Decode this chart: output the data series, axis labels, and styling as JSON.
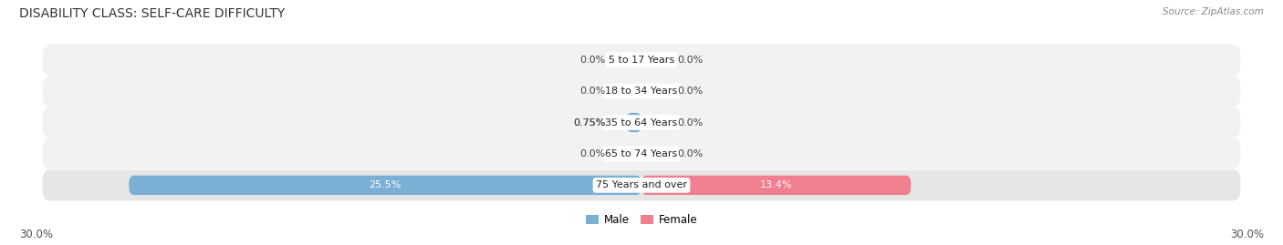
{
  "title": "DISABILITY CLASS: SELF-CARE DIFFICULTY",
  "source": "Source: ZipAtlas.com",
  "categories": [
    "5 to 17 Years",
    "18 to 34 Years",
    "35 to 64 Years",
    "65 to 74 Years",
    "75 Years and over"
  ],
  "male_values": [
    0.0,
    0.0,
    0.75,
    0.0,
    25.5
  ],
  "female_values": [
    0.0,
    0.0,
    0.0,
    0.0,
    13.4
  ],
  "male_labels": [
    "0.0%",
    "0.0%",
    "0.75%",
    "0.0%",
    "25.5%"
  ],
  "female_labels": [
    "0.0%",
    "0.0%",
    "0.0%",
    "0.0%",
    "13.4%"
  ],
  "max_val": 30.0,
  "male_color": "#7bafd4",
  "female_color": "#f08090",
  "row_bg_light": "#f2f2f2",
  "row_bg_dark": "#e6e6e6",
  "title_fontsize": 10,
  "label_fontsize": 8,
  "axis_label_fontsize": 8.5,
  "fig_bg_color": "#ffffff",
  "center_label_bg": "#ffffff"
}
